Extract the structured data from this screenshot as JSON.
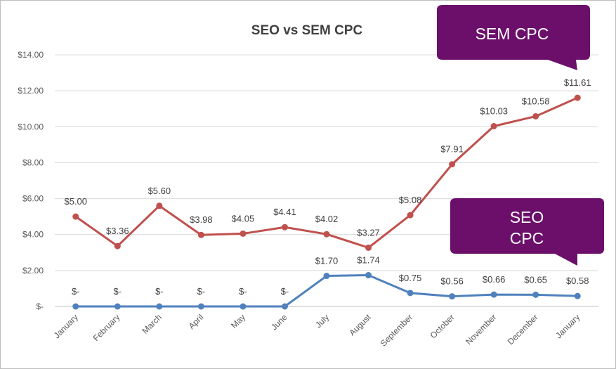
{
  "chart_data": {
    "type": "line",
    "title": "SEO vs SEM CPC",
    "categories": [
      "January",
      "February",
      "March",
      "April",
      "May",
      "June",
      "July",
      "August",
      "September",
      "October",
      "November",
      "December",
      "January"
    ],
    "ylim": [
      0,
      14
    ],
    "yticks": [
      0,
      2,
      4,
      6,
      8,
      10,
      12,
      14
    ],
    "ytick_labels": [
      "$-",
      "$2.00",
      "$4.00",
      "$6.00",
      "$8.00",
      "$10.00",
      "$12.00",
      "$14.00"
    ],
    "grid": true,
    "series": [
      {
        "key": "sem",
        "color": "#c0504d",
        "values": [
          5.0,
          3.36,
          5.6,
          3.98,
          4.05,
          4.41,
          4.02,
          3.27,
          5.08,
          7.91,
          10.03,
          10.58,
          11.61
        ],
        "labels": [
          "$5.00",
          "$3.36",
          "$5.60",
          "$3.98",
          "$4.05",
          "$4.41",
          "$4.02",
          "$3.27",
          "$5.08",
          "$7.91",
          "$10.03",
          "$10.58",
          "$11.61"
        ]
      },
      {
        "key": "seo",
        "color": "#4f81bd",
        "values": [
          0,
          0,
          0,
          0,
          0,
          0,
          1.7,
          1.74,
          0.75,
          0.56,
          0.66,
          0.65,
          0.58
        ],
        "labels": [
          "$-",
          "$-",
          "$-",
          "$-",
          "$-",
          "$-",
          "$1.70",
          "$1.74",
          "$0.75",
          "$0.56",
          "$0.66",
          "$0.65",
          "$0.58"
        ]
      }
    ]
  },
  "callouts": {
    "sem": {
      "line1": "SEM CPC",
      "line2": ""
    },
    "seo": {
      "line1": "SEO",
      "line2": "CPC"
    },
    "color": "#6b0f6b"
  }
}
